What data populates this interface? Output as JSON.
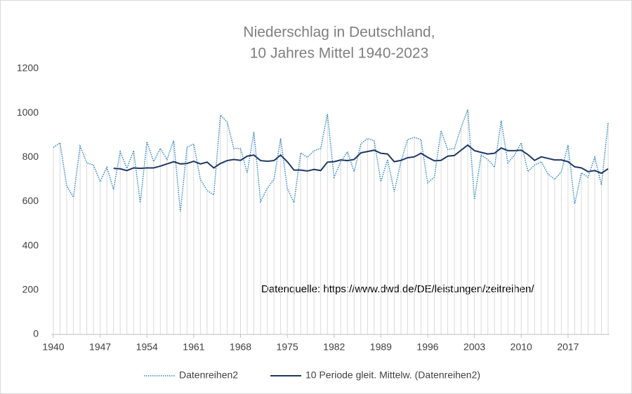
{
  "chart_data": {
    "type": "line",
    "title": [
      "Niederschlag  in Deutschland,",
      "10 Jahres  Mittel 1940-2023"
    ],
    "annotation": "Datenquelle: https://www.dwd.de/DE/leistungen/zeitreihen/",
    "x": [
      1940,
      1941,
      1942,
      1943,
      1944,
      1945,
      1946,
      1947,
      1948,
      1949,
      1950,
      1951,
      1952,
      1953,
      1954,
      1955,
      1956,
      1957,
      1958,
      1959,
      1960,
      1961,
      1962,
      1963,
      1964,
      1965,
      1966,
      1967,
      1968,
      1969,
      1970,
      1971,
      1972,
      1973,
      1974,
      1975,
      1976,
      1977,
      1978,
      1979,
      1980,
      1981,
      1982,
      1983,
      1984,
      1985,
      1986,
      1987,
      1988,
      1989,
      1990,
      1991,
      1992,
      1993,
      1994,
      1995,
      1996,
      1997,
      1998,
      1999,
      2000,
      2001,
      2002,
      2003,
      2004,
      2005,
      2006,
      2007,
      2008,
      2009,
      2010,
      2011,
      2012,
      2013,
      2014,
      2015,
      2016,
      2017,
      2018,
      2019,
      2020,
      2021,
      2022,
      2023
    ],
    "series": [
      {
        "name": "Datenreihen2",
        "color": "#2e86c1",
        "dash": "dotted",
        "drop_lines": true,
        "values": [
          845,
          865,
          670,
          620,
          850,
          775,
          765,
          690,
          755,
          655,
          825,
          750,
          830,
          595,
          870,
          780,
          840,
          790,
          875,
          555,
          845,
          860,
          700,
          650,
          630,
          990,
          960,
          840,
          840,
          730,
          915,
          600,
          660,
          700,
          885,
          660,
          595,
          820,
          800,
          830,
          840,
          995,
          710,
          780,
          825,
          735,
          860,
          885,
          875,
          690,
          790,
          645,
          780,
          880,
          890,
          880,
          685,
          710,
          920,
          835,
          840,
          935,
          1015,
          610,
          810,
          790,
          755,
          965,
          775,
          810,
          865,
          735,
          765,
          780,
          725,
          700,
          735,
          855,
          590,
          730,
          710,
          800,
          675,
          955
        ]
      },
      {
        "name": "10 Periode gleit. Mittelw. (Datenreihen2)",
        "color": "#1f3864",
        "dash": "solid",
        "values": [
          null,
          null,
          null,
          null,
          null,
          null,
          null,
          null,
          null,
          750,
          748,
          740,
          752,
          750,
          752,
          752,
          760,
          770,
          780,
          770,
          772,
          782,
          770,
          778,
          752,
          772,
          785,
          790,
          786,
          805,
          810,
          785,
          782,
          785,
          810,
          780,
          742,
          742,
          738,
          745,
          740,
          778,
          780,
          788,
          785,
          790,
          820,
          826,
          832,
          818,
          815,
          780,
          786,
          798,
          802,
          818,
          800,
          784,
          786,
          805,
          808,
          832,
          855,
          830,
          822,
          815,
          818,
          842,
          830,
          830,
          832,
          812,
          786,
          802,
          795,
          788,
          788,
          780,
          757,
          752,
          735,
          740,
          728,
          748
        ]
      }
    ],
    "xlim": [
      1940,
      2023
    ],
    "xticks": [
      1940,
      1947,
      1954,
      1961,
      1968,
      1975,
      1982,
      1989,
      1996,
      2003,
      2010,
      2017
    ],
    "ylim": [
      0,
      1200
    ],
    "yticks": [
      0,
      200,
      400,
      600,
      800,
      1000,
      1200
    ],
    "legend": "bottom"
  }
}
